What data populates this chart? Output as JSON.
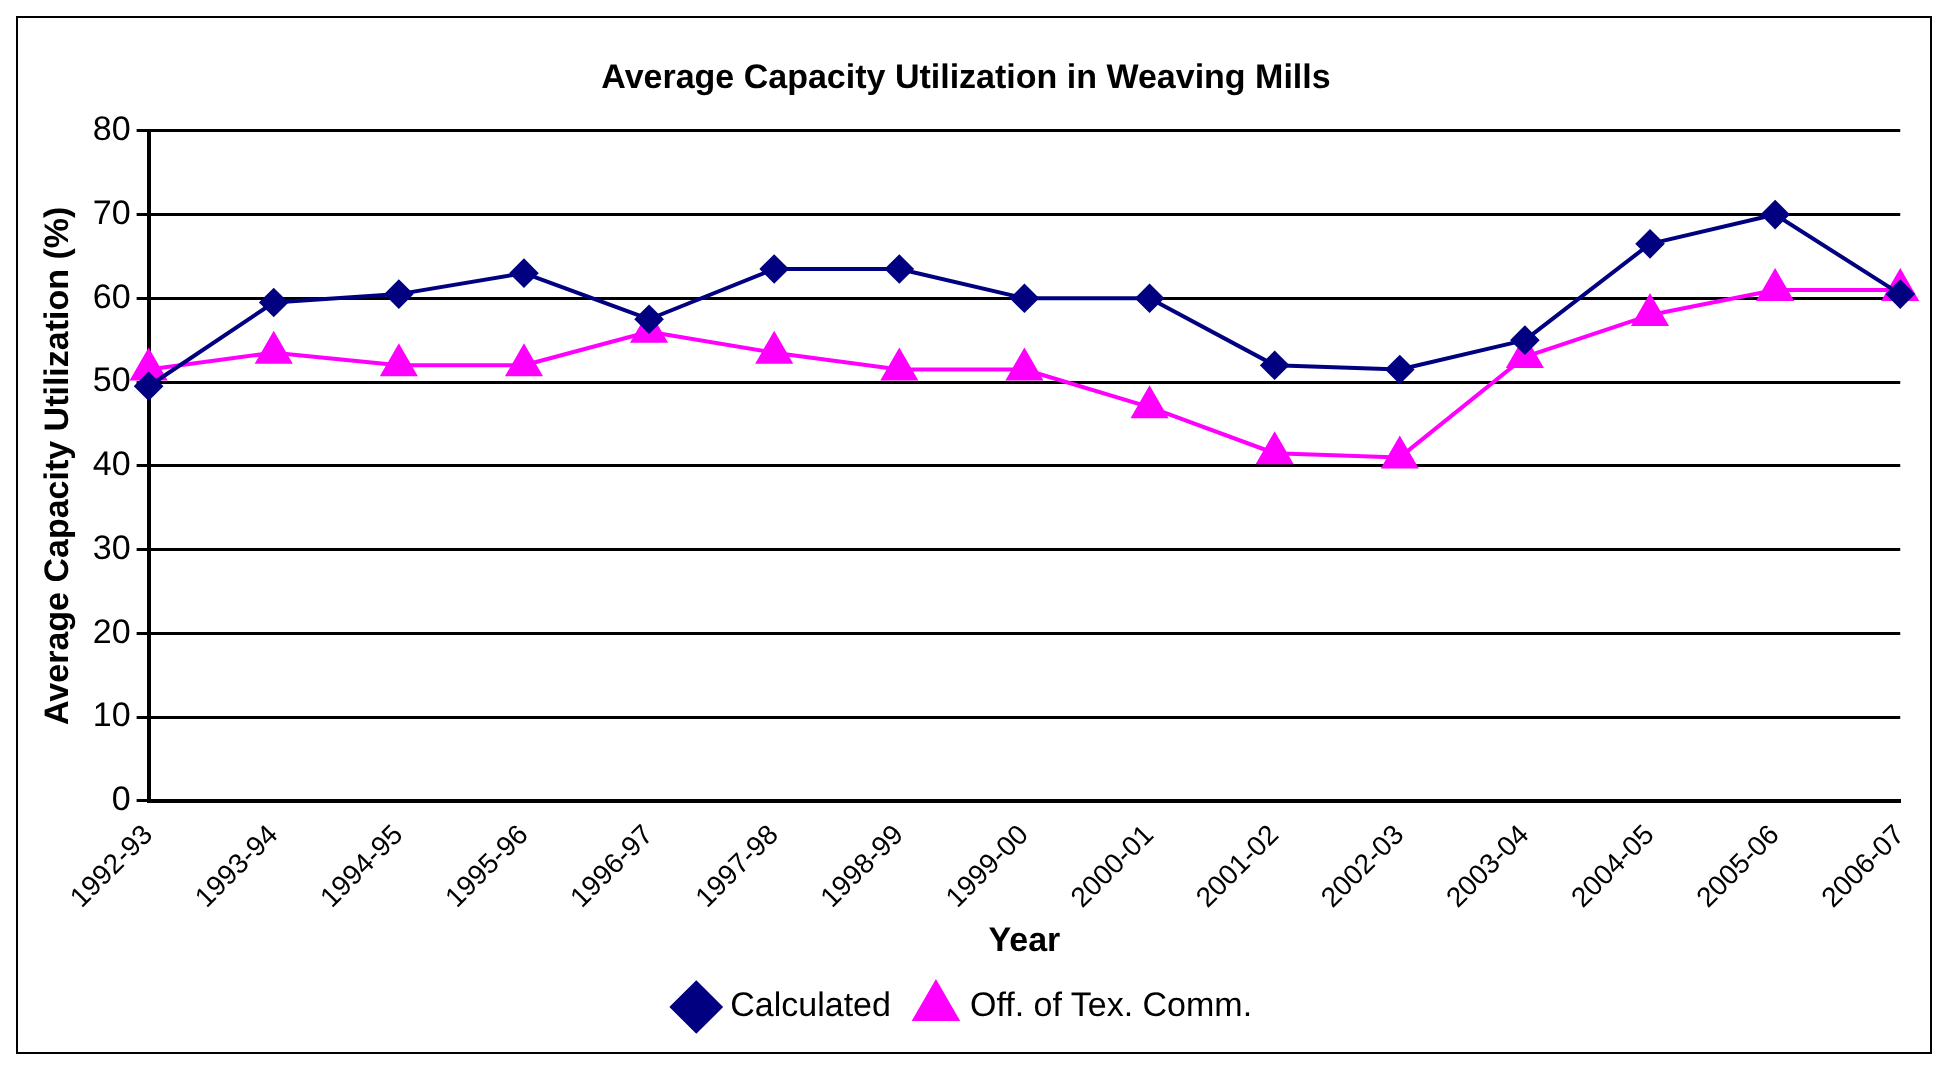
{
  "chart_data": {
    "type": "line",
    "title": "Average Capacity Utilization in Weaving Mills",
    "xlabel": "Year",
    "ylabel": "Average Capacity Utilization (%)",
    "categories": [
      "1992-93",
      "1993-94",
      "1994-95",
      "1995-96",
      "1996-97",
      "1997-98",
      "1998-99",
      "1999-00",
      "2000-01",
      "2001-02",
      "2002-03",
      "2003-04",
      "2004-05",
      "2005-06",
      "2006-07"
    ],
    "series": [
      {
        "name": "Calculated",
        "color": "#000080",
        "marker": "diamond",
        "values": [
          49.5,
          59.5,
          60.5,
          63,
          57.5,
          63.5,
          63.5,
          60,
          60,
          52,
          51.5,
          55,
          66.5,
          70,
          60.5
        ]
      },
      {
        "name": "Off. of Tex. Comm.",
        "color": "#ff00ff",
        "marker": "triangle",
        "values": [
          51.5,
          53.5,
          52,
          52,
          56,
          53.5,
          51.5,
          51.5,
          47,
          41.5,
          41,
          53,
          58,
          61,
          61
        ]
      }
    ],
    "ylim": [
      0,
      80
    ],
    "yticks": [
      0,
      10,
      20,
      30,
      40,
      50,
      60,
      70,
      80
    ],
    "grid": "y",
    "legend": "bottom",
    "line_style": "solid"
  }
}
